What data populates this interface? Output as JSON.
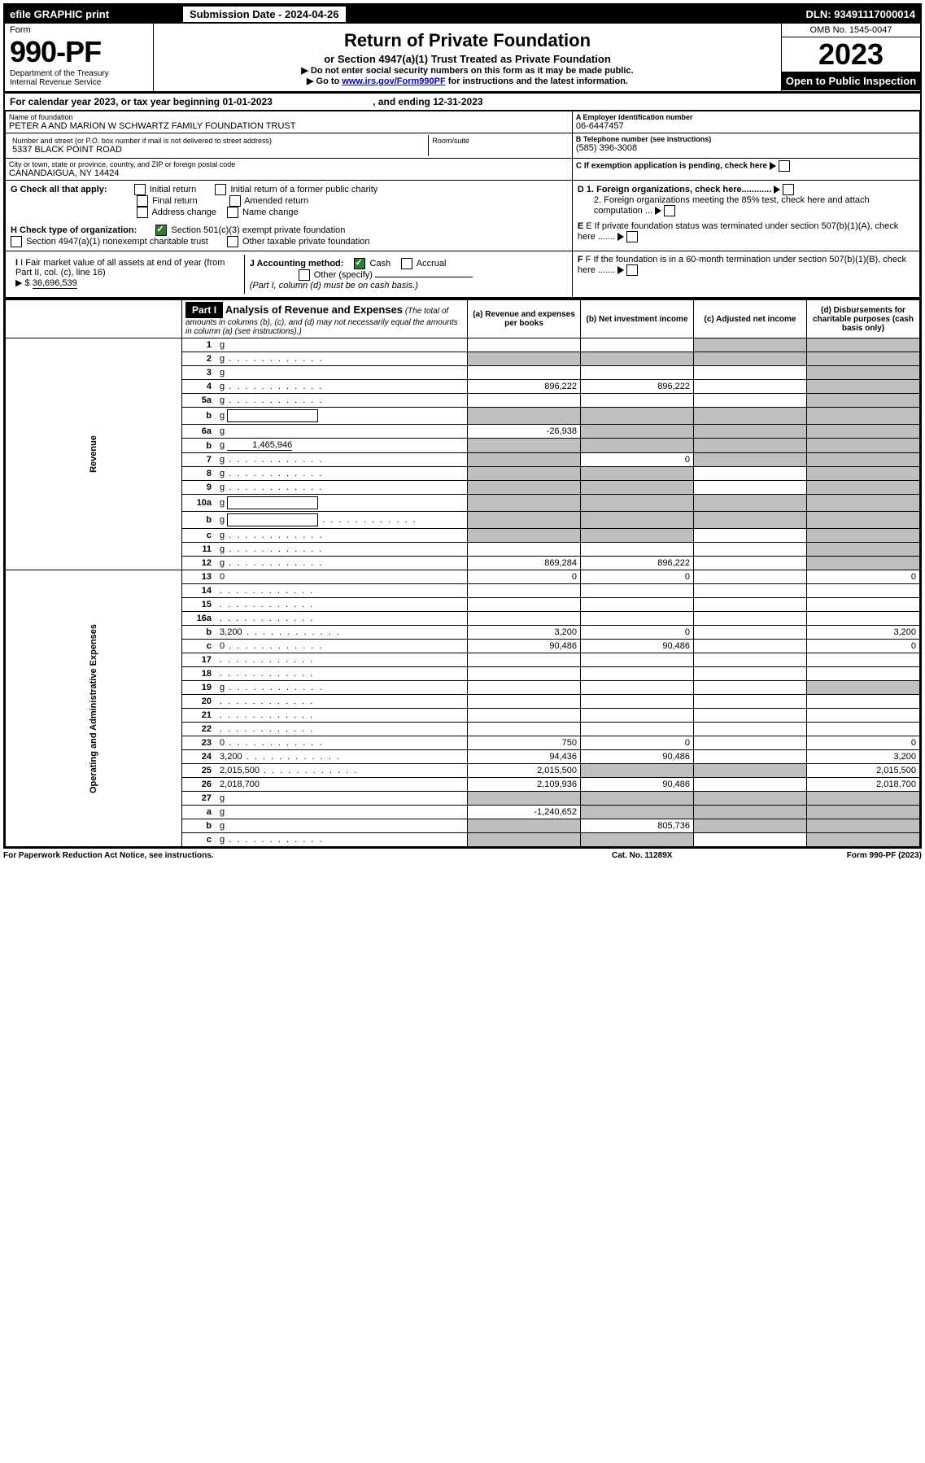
{
  "top": {
    "efile": "efile GRAPHIC print",
    "sub_label": "Submission Date - 2024-04-26",
    "dln": "DLN: 93491117000014"
  },
  "header": {
    "form_word": "Form",
    "form_num": "990-PF",
    "dept": "Department of the Treasury",
    "irs": "Internal Revenue Service",
    "title": "Return of Private Foundation",
    "subtitle": "or Section 4947(a)(1) Trust Treated as Private Foundation",
    "instr1": "▶ Do not enter social security numbers on this form as it may be made public.",
    "instr2_pre": "▶ Go to ",
    "instr2_link": "www.irs.gov/Form990PF",
    "instr2_post": " for instructions and the latest information.",
    "omb": "OMB No. 1545-0047",
    "year": "2023",
    "open": "Open to Public Inspection"
  },
  "cal": {
    "text_pre": "For calendar year 2023, or tax year beginning ",
    "begin": "01-01-2023",
    "mid": " , and ending ",
    "end": "12-31-2023"
  },
  "org": {
    "name_lbl": "Name of foundation",
    "name": "PETER A AND MARION W SCHWARTZ FAMILY FOUNDATION TRUST",
    "ein_lbl": "A Employer identification number",
    "ein": "06-6447457",
    "addr_lbl": "Number and street (or P.O. box number if mail is not delivered to street address)",
    "addr": "5337 BLACK POINT ROAD",
    "room_lbl": "Room/suite",
    "tel_lbl": "B Telephone number (see instructions)",
    "tel": "(585) 396-3008",
    "city_lbl": "City or town, state or province, country, and ZIP or foreign postal code",
    "city": "CANANDAIGUA, NY  14424",
    "c_lbl": "C If exemption application is pending, check here"
  },
  "checks": {
    "g": "G Check all that apply:",
    "g_opts": [
      "Initial return",
      "Initial return of a former public charity",
      "Final return",
      "Amended return",
      "Address change",
      "Name change"
    ],
    "h": "H Check type of organization:",
    "h1": "Section 501(c)(3) exempt private foundation",
    "h2": "Section 4947(a)(1) nonexempt charitable trust",
    "h3": "Other taxable private foundation",
    "i_lbl": "I Fair market value of all assets at end of year (from Part II, col. (c), line 16)",
    "i_val": "36,696,539",
    "j_lbl": "J Accounting method:",
    "j_cash": "Cash",
    "j_accr": "Accrual",
    "j_other": "Other (specify)",
    "j_note": "(Part I, column (d) must be on cash basis.)",
    "d1": "D 1. Foreign organizations, check here............",
    "d2": "2. Foreign organizations meeting the 85% test, check here and attach computation ...",
    "e": "E If private foundation status was terminated under section 507(b)(1)(A), check here .......",
    "f": "F If the foundation is in a 60-month termination under section 507(b)(1)(B), check here .......",
    "dollar": "▶ $"
  },
  "part1": {
    "hdr": "Part I",
    "title": "Analysis of Revenue and Expenses",
    "title_note": "(The total of amounts in columns (b), (c), and (d) may not necessarily equal the amounts in column (a) (see instructions).)",
    "cols": {
      "a": "(a) Revenue and expenses per books",
      "b": "(b) Net investment income",
      "c": "(c) Adjusted net income",
      "d": "(d) Disbursements for charitable purposes (cash basis only)"
    },
    "sides": {
      "rev": "Revenue",
      "exp": "Operating and Administrative Expenses"
    }
  },
  "rows": [
    {
      "n": "1",
      "d": "g",
      "a": "",
      "b": "",
      "c": "g"
    },
    {
      "n": "2",
      "d": "g",
      "a": "g",
      "b": "g",
      "c": "g",
      "dots": 1
    },
    {
      "n": "3",
      "d": "g",
      "a": "",
      "b": "",
      "c": ""
    },
    {
      "n": "4",
      "d": "g",
      "a": "896,222",
      "b": "896,222",
      "c": "",
      "dots": 1
    },
    {
      "n": "5a",
      "d": "g",
      "a": "",
      "b": "",
      "c": "",
      "dots": 1
    },
    {
      "n": "b",
      "d": "g",
      "a": "g",
      "b": "g",
      "c": "g",
      "inline_box": 1
    },
    {
      "n": "6a",
      "d": "g",
      "a": "-26,938",
      "b": "g",
      "c": "g"
    },
    {
      "n": "b",
      "d": "g",
      "a": "g",
      "b": "g",
      "c": "g",
      "inline_val": "1,465,946"
    },
    {
      "n": "7",
      "d": "g",
      "a": "g",
      "b": "0",
      "c": "g",
      "dots": 1
    },
    {
      "n": "8",
      "d": "g",
      "a": "g",
      "b": "g",
      "c": "",
      "dots": 1
    },
    {
      "n": "9",
      "d": "g",
      "a": "g",
      "b": "g",
      "c": "",
      "dots": 1
    },
    {
      "n": "10a",
      "d": "g",
      "a": "g",
      "b": "g",
      "c": "g",
      "inline_box": 1
    },
    {
      "n": "b",
      "d": "g",
      "a": "g",
      "b": "g",
      "c": "g",
      "inline_box": 1,
      "dots": 1
    },
    {
      "n": "c",
      "d": "g",
      "a": "g",
      "b": "g",
      "c": "",
      "dots": 1
    },
    {
      "n": "11",
      "d": "g",
      "a": "",
      "b": "",
      "c": "",
      "dots": 1
    },
    {
      "n": "12",
      "d": "g",
      "a": "869,284",
      "b": "896,222",
      "c": "",
      "dots": 1
    },
    {
      "n": "13",
      "d": "0",
      "a": "0",
      "b": "0",
      "c": ""
    },
    {
      "n": "14",
      "d": "",
      "a": "",
      "b": "",
      "c": "",
      "dots": 1
    },
    {
      "n": "15",
      "d": "",
      "a": "",
      "b": "",
      "c": "",
      "dots": 1
    },
    {
      "n": "16a",
      "d": "",
      "a": "",
      "b": "",
      "c": "",
      "dots": 1
    },
    {
      "n": "b",
      "d": "3,200",
      "a": "3,200",
      "b": "0",
      "c": "",
      "dots": 1
    },
    {
      "n": "c",
      "d": "0",
      "a": "90,486",
      "b": "90,486",
      "c": "",
      "dots": 1
    },
    {
      "n": "17",
      "d": "",
      "a": "",
      "b": "",
      "c": "",
      "dots": 1
    },
    {
      "n": "18",
      "d": "",
      "a": "",
      "b": "",
      "c": "",
      "dots": 1
    },
    {
      "n": "19",
      "d": "g",
      "a": "",
      "b": "",
      "c": "",
      "dots": 1
    },
    {
      "n": "20",
      "d": "",
      "a": "",
      "b": "",
      "c": "",
      "dots": 1
    },
    {
      "n": "21",
      "d": "",
      "a": "",
      "b": "",
      "c": "",
      "dots": 1
    },
    {
      "n": "22",
      "d": "",
      "a": "",
      "b": "",
      "c": "",
      "dots": 1
    },
    {
      "n": "23",
      "d": "0",
      "a": "750",
      "b": "0",
      "c": "",
      "dots": 1
    },
    {
      "n": "24",
      "d": "3,200",
      "a": "94,436",
      "b": "90,486",
      "c": "",
      "dots": 1
    },
    {
      "n": "25",
      "d": "2,015,500",
      "a": "2,015,500",
      "b": "g",
      "c": "g",
      "dots": 1
    },
    {
      "n": "26",
      "d": "2,018,700",
      "a": "2,109,936",
      "b": "90,486",
      "c": ""
    },
    {
      "n": "27",
      "d": "g",
      "a": "g",
      "b": "g",
      "c": "g"
    },
    {
      "n": "a",
      "d": "g",
      "a": "-1,240,652",
      "b": "g",
      "c": "g"
    },
    {
      "n": "b",
      "d": "g",
      "a": "g",
      "b": "805,736",
      "c": "g"
    },
    {
      "n": "c",
      "d": "g",
      "a": "g",
      "b": "g",
      "c": "",
      "dots": 1
    }
  ],
  "footer": {
    "pra": "For Paperwork Reduction Act Notice, see instructions.",
    "cat": "Cat. No. 11289X",
    "form": "Form 990-PF (2023)"
  }
}
